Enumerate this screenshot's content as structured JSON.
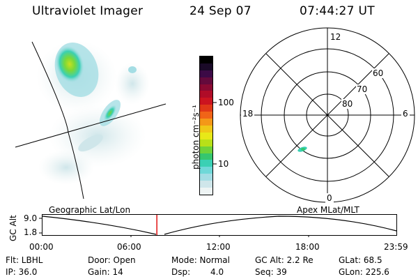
{
  "header": {
    "title": "Ultraviolet Imager",
    "date": "24 Sep 07",
    "time": "07:44:27 UT"
  },
  "geo_panel": {
    "label": "Geographic Lat/Lon"
  },
  "colorbar": {
    "unit_label": "photon cm⁻²s⁻¹",
    "tick_100": "100",
    "tick_10": "10",
    "colors": [
      "#eef4f4",
      "#cfe6ea",
      "#a4dde4",
      "#6fd8d8",
      "#3ad0b4",
      "#36c66e",
      "#6fd23a",
      "#b8e018",
      "#e8e818",
      "#f0c818",
      "#f49818",
      "#f06418",
      "#e03818",
      "#cc1420",
      "#b00c28",
      "#8a0a32",
      "#640a3c",
      "#3c0a46",
      "#1a0a28",
      "#000000"
    ]
  },
  "polar": {
    "mlt_labels": {
      "top": "12",
      "left": "18",
      "right": "6",
      "bottom": "0"
    },
    "lat_labels": [
      "60",
      "70",
      "80"
    ]
  },
  "altitude": {
    "axis_title": "GC Alt",
    "ymax": "9.0",
    "ymin": "1.8",
    "current_time_hours": 7.74,
    "x_ticks": [
      "00:00",
      "06:00",
      "12:00",
      "18:00",
      "23:59"
    ],
    "right_label": "Apex MLat/MLT"
  },
  "info": {
    "flt": "Flt: LBHL",
    "ip": "IP: 36.0",
    "door": "Door: Open",
    "gain": "Gain: 14",
    "mode": "Mode: Normal",
    "dsp_label": "Dsp:",
    "dsp_value": "4.0",
    "gcalt": "GC Alt: 2.2 Re",
    "seq": "Seq: 39",
    "glat": "GLat:  68.5",
    "glon": "GLon: 225.6"
  }
}
